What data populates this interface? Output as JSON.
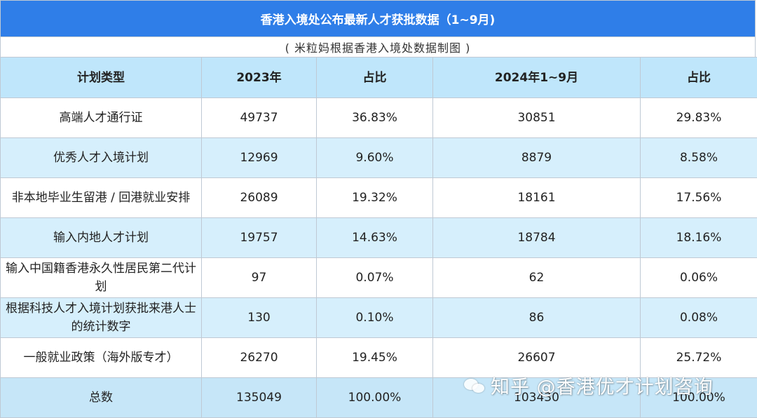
{
  "header": {
    "title": "香港入境处公布最新人才获批数据（1~9月)",
    "subtitle": "( 米粒妈根据香港入境处数据制图 )"
  },
  "table": {
    "columns": [
      "计划类型",
      "2023年",
      "占比",
      "2024年1~9月",
      "占比"
    ],
    "rows": [
      {
        "name": "高端人才通行证",
        "y2023": "49737",
        "pct2023": "36.83%",
        "y2024": "30851",
        "pct2024": "29.83%"
      },
      {
        "name": "优秀人才入境计划",
        "y2023": "12969",
        "pct2023": "9.60%",
        "y2024": "8879",
        "pct2024": "8.58%"
      },
      {
        "name": "非本地毕业生留港 / 回港就业安排",
        "y2023": "26089",
        "pct2023": "19.32%",
        "y2024": "18161",
        "pct2024": "17.56%"
      },
      {
        "name": "输入内地人才计划",
        "y2023": "19757",
        "pct2023": "14.63%",
        "y2024": "18784",
        "pct2024": "18.16%"
      },
      {
        "name": "输入中国籍香港永久性居民第二代计划",
        "y2023": "97",
        "pct2023": "0.07%",
        "y2024": "62",
        "pct2024": "0.06%"
      },
      {
        "name": "根据科技人才入境计划获批来港人士的统计数字",
        "y2023": "130",
        "pct2023": "0.10%",
        "y2024": "86",
        "pct2024": "0.08%"
      },
      {
        "name": "一般就业政策（海外版专才）",
        "y2023": "26270",
        "pct2023": "19.45%",
        "y2024": "26607",
        "pct2024": "25.72%"
      }
    ],
    "total": {
      "name": "总数",
      "y2023": "135049",
      "pct2023": "100.00%",
      "y2024": "103430",
      "pct2024": "100.00%"
    }
  },
  "watermark": {
    "text": "知乎 @香港优才计划咨询",
    "icon": "chat-bubbles-icon"
  },
  "colors": {
    "title_bg": "#2f7ee8",
    "header_bg": "#bfe6fb",
    "stripe_bg": "#d6effc",
    "total_bg": "#c6e6f8"
  }
}
